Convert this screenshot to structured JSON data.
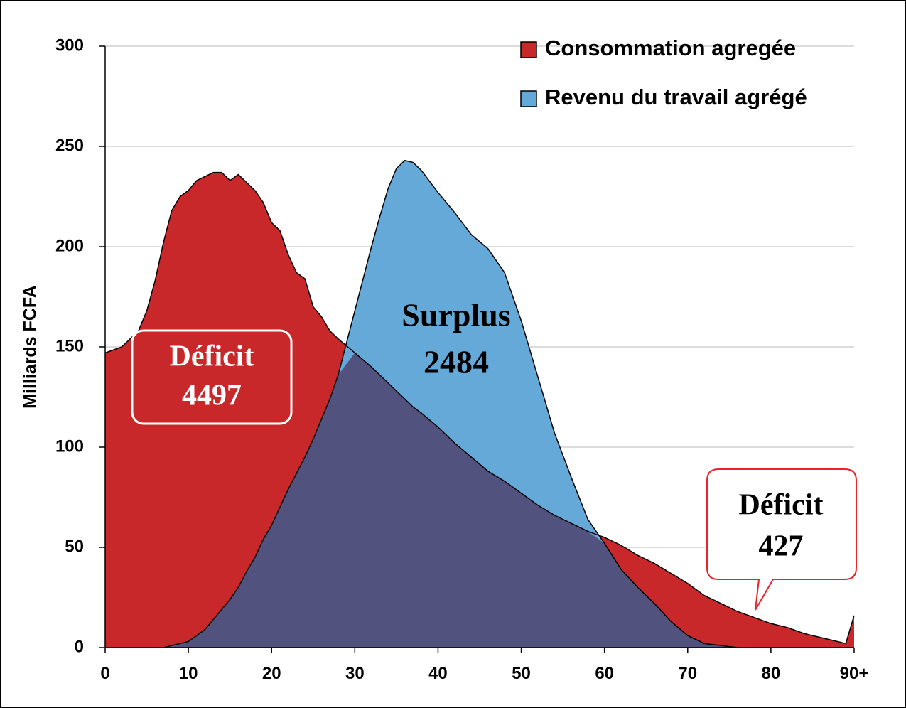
{
  "chart_data": {
    "type": "area",
    "y_label": "Milliards FCFA",
    "x": [
      0,
      2,
      4,
      5,
      6,
      7,
      8,
      9,
      10,
      11,
      12,
      13,
      14,
      15,
      16,
      17,
      18,
      19,
      20,
      21,
      22,
      23,
      24,
      25,
      26,
      27,
      28,
      30,
      32,
      33,
      34,
      35,
      36,
      37,
      38,
      40,
      42,
      44,
      46,
      48,
      50,
      52,
      54,
      56,
      58,
      60,
      62,
      64,
      66,
      68,
      70,
      72,
      74,
      76,
      78,
      80,
      82,
      84,
      86,
      88,
      89,
      90
    ],
    "series": [
      {
        "name": "Consommation agregée",
        "color": "#c8282a",
        "values": [
          147,
          150,
          158,
          168,
          183,
          202,
          218,
          225,
          228,
          233,
          235,
          237,
          237,
          233,
          236,
          232,
          228,
          222,
          212,
          208,
          196,
          187,
          184,
          170,
          165,
          158,
          154,
          147,
          140,
          136,
          132,
          128,
          124,
          120,
          117,
          110,
          102,
          95,
          88,
          83,
          77,
          71,
          66,
          62,
          58,
          55,
          51,
          46,
          42,
          37,
          32,
          26,
          22,
          18,
          15,
          12,
          10,
          7,
          5,
          3,
          2,
          16
        ]
      },
      {
        "name": "Revenu du travail agrégé",
        "color": "#65a9d9",
        "values": [
          0,
          0,
          0,
          0,
          0,
          0,
          1,
          2,
          3,
          6,
          9,
          14,
          19,
          24,
          30,
          38,
          45,
          54,
          61,
          70,
          79,
          87,
          95,
          104,
          114,
          124,
          136,
          168,
          200,
          215,
          229,
          239,
          243,
          242,
          238,
          227,
          217,
          206,
          199,
          187,
          163,
          135,
          107,
          85,
          64,
          52,
          39,
          30,
          22,
          13,
          6,
          2,
          1,
          0,
          0,
          0,
          0,
          0,
          0,
          0,
          0,
          0
        ]
      }
    ],
    "overlap_color": "#52527f",
    "xlim": [
      0,
      90
    ],
    "xticks": [
      0,
      10,
      20,
      30,
      40,
      50,
      60,
      70,
      80,
      {
        "value": 90,
        "label": "90+"
      }
    ],
    "ylim": [
      0,
      300
    ],
    "yticks": [
      0,
      50,
      100,
      150,
      200,
      250,
      300
    ],
    "grid": true,
    "legend": "top-right",
    "annotations": [
      {
        "lines": [
          "Déficit",
          "4497"
        ]
      },
      {
        "lines": [
          "Surplus",
          "2484"
        ]
      },
      {
        "lines": [
          "Déficit",
          "427"
        ]
      }
    ]
  }
}
